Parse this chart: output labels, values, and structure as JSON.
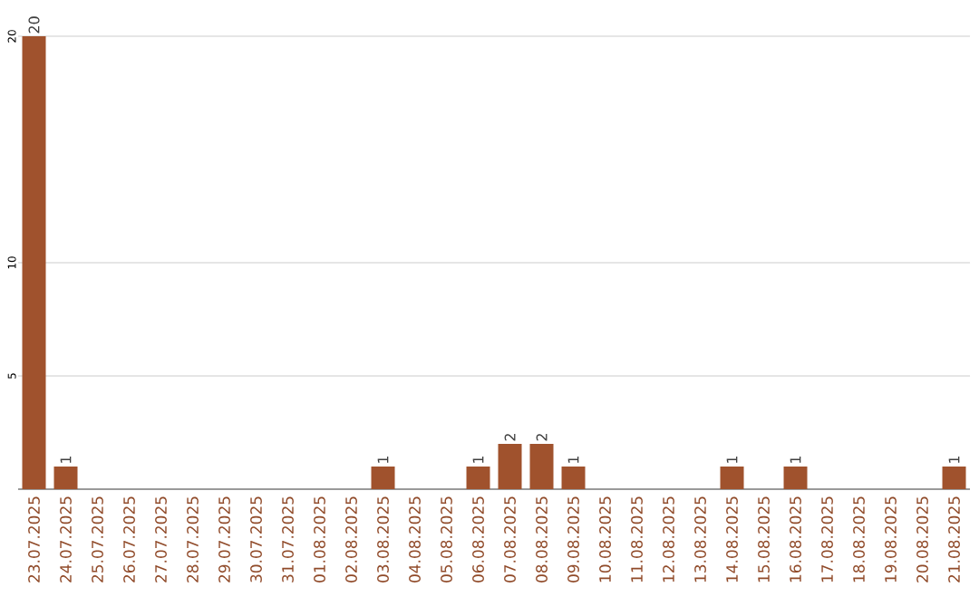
{
  "chart_data": {
    "type": "bar",
    "categories": [
      "23.07.2025",
      "24.07.2025",
      "25.07.2025",
      "26.07.2025",
      "27.07.2025",
      "28.07.2025",
      "29.07.2025",
      "30.07.2025",
      "31.07.2025",
      "01.08.2025",
      "02.08.2025",
      "03.08.2025",
      "04.08.2025",
      "05.08.2025",
      "06.08.2025",
      "07.08.2025",
      "08.08.2025",
      "09.08.2025",
      "10.08.2025",
      "11.08.2025",
      "12.08.2025",
      "13.08.2025",
      "14.08.2025",
      "15.08.2025",
      "16.08.2025",
      "17.08.2025",
      "18.08.2025",
      "19.08.2025",
      "20.08.2025",
      "21.08.2025"
    ],
    "values": [
      20,
      1,
      0,
      0,
      0,
      0,
      0,
      0,
      0,
      0,
      0,
      1,
      0,
      0,
      1,
      2,
      2,
      1,
      0,
      0,
      0,
      0,
      1,
      0,
      1,
      0,
      0,
      0,
      0,
      1
    ],
    "value_labels": [
      "20",
      "1",
      null,
      null,
      null,
      null,
      null,
      null,
      null,
      null,
      null,
      "1",
      null,
      null,
      "1",
      "2",
      "2",
      "1",
      null,
      null,
      null,
      null,
      "1",
      null,
      "1",
      null,
      null,
      null,
      null,
      "1"
    ],
    "color": "#a0522d",
    "ylim": [
      0,
      20
    ],
    "yticks": [
      5,
      10,
      20
    ],
    "grid": "y"
  }
}
